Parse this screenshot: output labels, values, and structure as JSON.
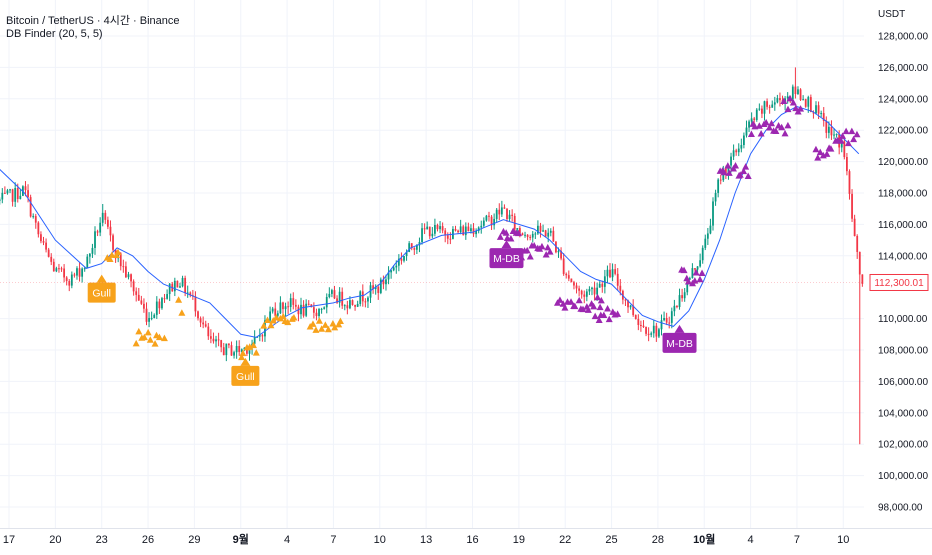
{
  "header": {
    "title": "Bitcoin / TetherUS · 4시간 · Binance",
    "indicator": "DB Finder (20, 5, 5)"
  },
  "colors": {
    "up": "#089981",
    "down": "#f23645",
    "ma": "#2962ff",
    "gull": "#f7a21b",
    "mdb": "#9c27b0",
    "price_label": "#f23645",
    "grid": "#f0f3fa",
    "text": "#131722"
  },
  "chart_data": {
    "type": "candlestick",
    "y_axis_label": "USDT",
    "ylim": [
      97000,
      129000
    ],
    "y_ticks": [
      {
        "value": 128000,
        "label": "128,000.00"
      },
      {
        "value": 126000,
        "label": "126,000.00"
      },
      {
        "value": 124000,
        "label": "124,000.00"
      },
      {
        "value": 122000,
        "label": "122,000.00"
      },
      {
        "value": 120000,
        "label": "120,000.00"
      },
      {
        "value": 118000,
        "label": "118,000.00"
      },
      {
        "value": 116000,
        "label": "116,000.00"
      },
      {
        "value": 114000,
        "label": "114,000.00"
      },
      {
        "value": 110000,
        "label": "110,000.00"
      },
      {
        "value": 108000,
        "label": "108,000.00"
      },
      {
        "value": 106000,
        "label": "106,000.00"
      },
      {
        "value": 104000,
        "label": "104,000.00"
      },
      {
        "value": 102000,
        "label": "102,000.00"
      },
      {
        "value": 100000,
        "label": "100,000.00"
      },
      {
        "value": 98000,
        "label": "98,000.00"
      }
    ],
    "x_ticks": [
      {
        "day": 0,
        "label": "17",
        "bold": false
      },
      {
        "day": 3,
        "label": "20",
        "bold": false
      },
      {
        "day": 6,
        "label": "23",
        "bold": false
      },
      {
        "day": 9,
        "label": "26",
        "bold": false
      },
      {
        "day": 12,
        "label": "29",
        "bold": false
      },
      {
        "day": 15,
        "label": "9월",
        "bold": true
      },
      {
        "day": 18,
        "label": "4",
        "bold": false
      },
      {
        "day": 21,
        "label": "7",
        "bold": false
      },
      {
        "day": 24,
        "label": "10",
        "bold": false
      },
      {
        "day": 27,
        "label": "13",
        "bold": false
      },
      {
        "day": 30,
        "label": "16",
        "bold": false
      },
      {
        "day": 33,
        "label": "19",
        "bold": false
      },
      {
        "day": 36,
        "label": "22",
        "bold": false
      },
      {
        "day": 39,
        "label": "25",
        "bold": false
      },
      {
        "day": 42,
        "label": "28",
        "bold": false
      },
      {
        "day": 45,
        "label": "10월",
        "bold": true
      },
      {
        "day": 48,
        "label": "4",
        "bold": false
      },
      {
        "day": 51,
        "label": "7",
        "bold": false
      },
      {
        "day": 54,
        "label": "10",
        "bold": false
      }
    ],
    "x_range": [
      -0.6,
      55.3
    ],
    "last_price": {
      "value": 112300.01,
      "label": "112,300.01"
    },
    "close_path": [
      [
        -0.6,
        117500
      ],
      [
        1,
        118200
      ],
      [
        2,
        115000
      ],
      [
        3,
        113000
      ],
      [
        4,
        112500
      ],
      [
        5,
        113500
      ],
      [
        6,
        116500
      ],
      [
        7,
        114000
      ],
      [
        8,
        112000
      ],
      [
        9,
        110000
      ],
      [
        10,
        111500
      ],
      [
        11,
        112500
      ],
      [
        12,
        111000
      ],
      [
        13,
        108500
      ],
      [
        14,
        108000
      ],
      [
        15,
        108000
      ],
      [
        16,
        108500
      ],
      [
        17,
        110500
      ],
      [
        18,
        111000
      ],
      [
        19,
        110500
      ],
      [
        20,
        110500
      ],
      [
        21,
        111500
      ],
      [
        22,
        111000
      ],
      [
        23,
        111500
      ],
      [
        24,
        112000
      ],
      [
        25,
        113500
      ],
      [
        26,
        114500
      ],
      [
        27,
        115700
      ],
      [
        28,
        115500
      ],
      [
        29,
        115500
      ],
      [
        30,
        115800
      ],
      [
        31,
        116200
      ],
      [
        32,
        117000
      ],
      [
        33,
        115500
      ],
      [
        34,
        115500
      ],
      [
        35,
        115500
      ],
      [
        36,
        113000
      ],
      [
        37,
        111500
      ],
      [
        38,
        112000
      ],
      [
        39,
        113000
      ],
      [
        40,
        111000
      ],
      [
        41,
        109500
      ],
      [
        42,
        109200
      ],
      [
        43,
        110500
      ],
      [
        44,
        112500
      ],
      [
        45,
        114500
      ],
      [
        46,
        119000
      ],
      [
        47,
        120500
      ],
      [
        48,
        122500
      ],
      [
        49,
        123500
      ],
      [
        50,
        124000
      ],
      [
        51,
        124500
      ],
      [
        52,
        123500
      ],
      [
        53,
        122000
      ],
      [
        54,
        121000
      ],
      [
        54.5,
        117000
      ],
      [
        55,
        113000
      ],
      [
        55.3,
        112300
      ]
    ],
    "spikes": [
      {
        "day": 6.1,
        "high": 117300
      },
      {
        "day": 50.9,
        "high": 126000
      },
      {
        "day": 55.0,
        "low": 102000
      }
    ],
    "moving_average": {
      "name": "",
      "points": [
        [
          -0.6,
          119500
        ],
        [
          1,
          118000
        ],
        [
          3,
          115000
        ],
        [
          5,
          113200
        ],
        [
          6,
          113500
        ],
        [
          7,
          114500
        ],
        [
          8,
          114000
        ],
        [
          9,
          113000
        ],
        [
          10,
          112200
        ],
        [
          11,
          111800
        ],
        [
          13,
          111000
        ],
        [
          14,
          110000
        ],
        [
          15,
          109000
        ],
        [
          16,
          108800
        ],
        [
          17,
          109500
        ],
        [
          18,
          110200
        ],
        [
          19,
          110700
        ],
        [
          21,
          111000
        ],
        [
          22,
          111300
        ],
        [
          23,
          111500
        ],
        [
          24,
          112200
        ],
        [
          25,
          113500
        ],
        [
          26,
          114500
        ],
        [
          28,
          115300
        ],
        [
          30,
          115500
        ],
        [
          32,
          116300
        ],
        [
          33,
          116000
        ],
        [
          34,
          115700
        ],
        [
          35,
          115000
        ],
        [
          36,
          114000
        ],
        [
          37,
          113000
        ],
        [
          38,
          112500
        ],
        [
          39,
          112200
        ],
        [
          40,
          111200
        ],
        [
          41,
          110200
        ],
        [
          42,
          109800
        ],
        [
          43,
          109500
        ],
        [
          44,
          110500
        ],
        [
          45,
          112500
        ],
        [
          46,
          115000
        ],
        [
          47,
          118000
        ],
        [
          48,
          120500
        ],
        [
          49,
          122000
        ],
        [
          50,
          123000
        ],
        [
          51,
          123500
        ],
        [
          52,
          123200
        ],
        [
          53,
          122500
        ],
        [
          54,
          121500
        ],
        [
          55,
          120500
        ]
      ]
    },
    "signal_groups": [
      {
        "type": "gull",
        "from": 6.3,
        "to": 7.2,
        "base": 113800
      },
      {
        "type": "gull",
        "from": 8.2,
        "to": 10.0,
        "base": 108800
      },
      {
        "type": "gull",
        "from": 11.0,
        "to": 11.3,
        "base": 110800
      },
      {
        "type": "gull",
        "from": 15.0,
        "to": 16.0,
        "base": 107900
      },
      {
        "type": "gull",
        "from": 16.5,
        "to": 18.5,
        "base": 109800
      },
      {
        "type": "gull",
        "from": 19.5,
        "to": 21.6,
        "base": 109600
      },
      {
        "type": "mdb",
        "from": 31.8,
        "to": 33.0,
        "base": 115300
      },
      {
        "type": "mdb",
        "from": 33.2,
        "to": 35.2,
        "base": 114300
      },
      {
        "type": "mdb",
        "from": 35.5,
        "to": 38.5,
        "base": 111000
      },
      {
        "type": "mdb",
        "from": 38.0,
        "to": 39.5,
        "base": 110200
      },
      {
        "type": "mdb",
        "from": 43.5,
        "to": 45.0,
        "base": 112700
      },
      {
        "type": "mdb",
        "from": 46.0,
        "to": 48.0,
        "base": 119500
      },
      {
        "type": "mdb",
        "from": 48.0,
        "to": 50.5,
        "base": 122200
      },
      {
        "type": "mdb",
        "from": 50.2,
        "to": 51.3,
        "base": 123600
      },
      {
        "type": "mdb",
        "from": 52.2,
        "to": 53.3,
        "base": 120500
      },
      {
        "type": "mdb",
        "from": 53.5,
        "to": 55.0,
        "base": 121500
      }
    ],
    "markers": [
      {
        "type": "gull",
        "day": 6.0,
        "price": 112800,
        "label": "Gull"
      },
      {
        "type": "gull",
        "day": 15.3,
        "price": 107500,
        "label": "Gull"
      },
      {
        "type": "mdb",
        "day": 32.2,
        "price": 115000,
        "label": "M-DB"
      },
      {
        "type": "mdb",
        "day": 43.4,
        "price": 109600,
        "label": "M-DB"
      }
    ]
  }
}
